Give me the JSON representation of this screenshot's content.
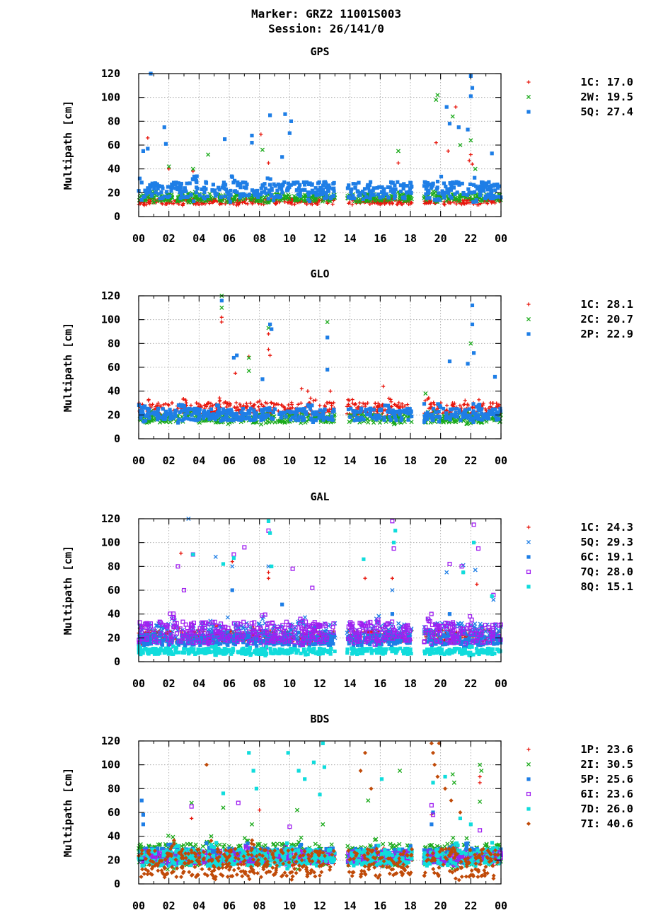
{
  "header": {
    "line1": "Marker: GRZ2 11001S003",
    "line2": "Session: 26/141/0"
  },
  "colors": {
    "1C": "#e8160c",
    "2W": "#1aaa1a",
    "5Q": "#1e7ee6",
    "2C": "#1aaa1a",
    "2P": "#1e7ee6",
    "6C": "#1e7ee6",
    "7Q": "#a020f0",
    "8Q": "#10dcdc",
    "1P": "#e8160c",
    "2I": "#1aaa1a",
    "5P": "#1e7ee6",
    "6I": "#a020f0",
    "7D": "#10dcdc",
    "7I": "#c04a08"
  },
  "chart_data": [
    {
      "type": "scatter",
      "title": "GPS",
      "ylabel": "Multipath [cm]",
      "ylim": [
        0,
        120
      ],
      "yticks": [
        0,
        20,
        40,
        60,
        80,
        100,
        120
      ],
      "xlim": [
        0,
        24
      ],
      "xticks": [
        "00",
        "02",
        "04",
        "06",
        "08",
        "10",
        "12",
        "14",
        "16",
        "18",
        "20",
        "22",
        "00"
      ],
      "grid": true,
      "legend_position": "right",
      "gaps": [
        [
          13.0,
          13.8
        ],
        [
          18.1,
          18.9
        ]
      ],
      "series": [
        {
          "name": "1C",
          "label": "1C: 17.0",
          "marker": "plus",
          "base": 12,
          "spread": 5,
          "outliers": [
            [
              0.6,
              66
            ],
            [
              2.0,
              40
            ],
            [
              3.6,
              38
            ],
            [
              8.1,
              69
            ],
            [
              8.6,
              45
            ],
            [
              17.2,
              45
            ],
            [
              19.7,
              62
            ],
            [
              20.5,
              55
            ],
            [
              21.0,
              92
            ],
            [
              21.9,
              47
            ],
            [
              22.0,
              52
            ],
            [
              22.1,
              44
            ]
          ]
        },
        {
          "name": "2W",
          "label": "2W: 19.5",
          "marker": "cross",
          "base": 15,
          "spread": 6,
          "outliers": [
            [
              2.0,
              42
            ],
            [
              3.6,
              40
            ],
            [
              4.6,
              52
            ],
            [
              8.2,
              56
            ],
            [
              17.2,
              55
            ],
            [
              19.7,
              98
            ],
            [
              19.8,
              102
            ],
            [
              20.8,
              84
            ],
            [
              21.3,
              60
            ],
            [
              22.0,
              64
            ],
            [
              22.3,
              40
            ]
          ]
        },
        {
          "name": "5Q",
          "label": "5Q: 27.4",
          "marker": "square",
          "base": 20,
          "spread": 14,
          "outliers": [
            [
              0.8,
              120
            ],
            [
              0.3,
              55
            ],
            [
              0.6,
              57
            ],
            [
              1.7,
              75
            ],
            [
              1.8,
              61
            ],
            [
              5.7,
              65
            ],
            [
              7.5,
              68
            ],
            [
              8.7,
              85
            ],
            [
              9.7,
              86
            ],
            [
              10.1,
              80
            ],
            [
              10.0,
              70
            ],
            [
              20.4,
              92
            ],
            [
              20.6,
              78
            ],
            [
              21.2,
              75
            ],
            [
              21.8,
              73
            ],
            [
              22.0,
              118
            ],
            [
              22.0,
              101
            ],
            [
              22.1,
              108
            ],
            [
              23.4,
              53
            ],
            [
              7.5,
              62
            ],
            [
              9.5,
              50
            ]
          ]
        }
      ]
    },
    {
      "type": "scatter",
      "title": "GLO",
      "ylabel": "Multipath [cm]",
      "ylim": [
        0,
        120
      ],
      "yticks": [
        0,
        20,
        40,
        60,
        80,
        100,
        120
      ],
      "xlim": [
        0,
        24
      ],
      "xticks": [
        "00",
        "02",
        "04",
        "06",
        "08",
        "10",
        "12",
        "14",
        "16",
        "18",
        "20",
        "22",
        "00"
      ],
      "grid": true,
      "legend_position": "right",
      "gaps": [
        [
          13.0,
          13.8
        ],
        [
          18.1,
          18.9
        ]
      ],
      "series": [
        {
          "name": "1C",
          "label": "1C: 28.1",
          "marker": "plus",
          "base": 24,
          "spread": 10,
          "outliers": [
            [
              5.5,
              98
            ],
            [
              5.5,
              102
            ],
            [
              6.4,
              55
            ],
            [
              7.3,
              69
            ],
            [
              8.6,
              88
            ],
            [
              8.6,
              75
            ],
            [
              8.7,
              70
            ],
            [
              10.8,
              42
            ],
            [
              11.2,
              40
            ],
            [
              12.7,
              40
            ],
            [
              16.2,
              44
            ]
          ]
        },
        {
          "name": "2C",
          "label": "2C: 20.7",
          "marker": "cross",
          "base": 16,
          "spread": 7,
          "outliers": [
            [
              5.5,
              120
            ],
            [
              5.5,
              110
            ],
            [
              7.3,
              68
            ],
            [
              7.3,
              57
            ],
            [
              8.6,
              93
            ],
            [
              12.5,
              98
            ],
            [
              19.0,
              38
            ],
            [
              22.0,
              80
            ]
          ]
        },
        {
          "name": "2P",
          "label": "2P: 22.9",
          "marker": "square",
          "base": 19,
          "spread": 10,
          "outliers": [
            [
              5.5,
              116
            ],
            [
              6.5,
              70
            ],
            [
              6.3,
              68
            ],
            [
              8.7,
              96
            ],
            [
              8.8,
              92
            ],
            [
              12.5,
              85
            ],
            [
              12.5,
              58
            ],
            [
              20.6,
              65
            ],
            [
              21.8,
              63
            ],
            [
              22.1,
              112
            ],
            [
              22.1,
              96
            ],
            [
              22.2,
              72
            ],
            [
              23.6,
              52
            ],
            [
              8.2,
              50
            ]
          ]
        }
      ]
    },
    {
      "type": "scatter",
      "title": "GAL",
      "ylabel": "Multipath [cm]",
      "ylim": [
        0,
        120
      ],
      "yticks": [
        0,
        20,
        40,
        60,
        80,
        100,
        120
      ],
      "xlim": [
        0,
        24
      ],
      "xticks": [
        "00",
        "02",
        "04",
        "06",
        "08",
        "10",
        "12",
        "14",
        "16",
        "18",
        "20",
        "22",
        "00"
      ],
      "grid": true,
      "legend_position": "right",
      "gaps": [
        [
          13.0,
          13.8
        ],
        [
          18.1,
          18.9
        ]
      ],
      "series": [
        {
          "name": "1C",
          "label": "1C: 24.3",
          "marker": "plus",
          "base": 20,
          "spread": 10,
          "outliers": [
            [
              2.8,
              91
            ],
            [
              6.2,
              84
            ],
            [
              8.6,
              70
            ],
            [
              15.0,
              70
            ],
            [
              16.8,
              70
            ],
            [
              21.5,
              75
            ],
            [
              22.4,
              65
            ],
            [
              8.6,
              75
            ]
          ]
        },
        {
          "name": "5Q",
          "label": "5Q: 29.3",
          "marker": "cross",
          "base": 22,
          "spread": 16,
          "outliers": [
            [
              3.3,
              120
            ],
            [
              5.1,
              88
            ],
            [
              6.2,
              80
            ],
            [
              8.6,
              80
            ],
            [
              16.8,
              60
            ],
            [
              20.4,
              75
            ],
            [
              21.5,
              81
            ],
            [
              22.3,
              77
            ],
            [
              23.5,
              52
            ]
          ]
        },
        {
          "name": "6C",
          "label": "6C: 19.1",
          "marker": "square",
          "base": 17,
          "spread": 9,
          "outliers": [
            [
              6.2,
              60
            ],
            [
              9.5,
              48
            ],
            [
              16.8,
              40
            ],
            [
              20.6,
              40
            ]
          ]
        },
        {
          "name": "7Q",
          "label": "7Q: 28.0",
          "marker": "osquare",
          "base": 22,
          "spread": 18,
          "outliers": [
            [
              2.6,
              80
            ],
            [
              3.0,
              60
            ],
            [
              3.6,
              90
            ],
            [
              6.3,
              90
            ],
            [
              7.0,
              96
            ],
            [
              8.6,
              110
            ],
            [
              10.2,
              78
            ],
            [
              11.5,
              62
            ],
            [
              16.8,
              118
            ],
            [
              16.9,
              95
            ],
            [
              20.6,
              82
            ],
            [
              21.4,
              80
            ],
            [
              22.2,
              115
            ],
            [
              22.5,
              95
            ],
            [
              23.5,
              56
            ]
          ]
        },
        {
          "name": "8Q",
          "label": "8Q: 15.1",
          "marker": "square",
          "base": 8,
          "spread": 5,
          "outliers": [
            [
              3.6,
              90
            ],
            [
              5.6,
              82
            ],
            [
              6.3,
              87
            ],
            [
              8.6,
              118
            ],
            [
              8.7,
              108
            ],
            [
              8.8,
              80
            ],
            [
              14.9,
              86
            ],
            [
              17.0,
              110
            ],
            [
              16.9,
              100
            ],
            [
              22.2,
              100
            ],
            [
              21.5,
              75
            ],
            [
              23.4,
              55
            ]
          ]
        }
      ]
    },
    {
      "type": "scatter",
      "title": "BDS",
      "ylabel": "Multipath [cm]",
      "ylim": [
        0,
        120
      ],
      "yticks": [
        0,
        20,
        40,
        60,
        80,
        100,
        120
      ],
      "xlim": [
        0,
        24
      ],
      "xticks": [
        "00",
        "02",
        "04",
        "06",
        "08",
        "10",
        "12",
        "14",
        "16",
        "18",
        "20",
        "22",
        "00"
      ],
      "grid": true,
      "legend_position": "right",
      "gaps": [
        [
          13.0,
          13.8
        ],
        [
          18.1,
          18.9
        ]
      ],
      "series": [
        {
          "name": "1P",
          "label": "1P: 23.6",
          "marker": "plus",
          "base": 20,
          "spread": 10,
          "outliers": [
            [
              3.5,
              55
            ],
            [
              8.0,
              62
            ],
            [
              19.4,
              58
            ],
            [
              22.6,
              85
            ],
            [
              22.6,
              90
            ]
          ]
        },
        {
          "name": "2I",
          "label": "2I: 30.5",
          "marker": "cross",
          "base": 22,
          "spread": 18,
          "outliers": [
            [
              3.5,
              68
            ],
            [
              5.6,
              64
            ],
            [
              7.5,
              50
            ],
            [
              10.5,
              62
            ],
            [
              12.2,
              50
            ],
            [
              15.2,
              70
            ],
            [
              17.3,
              95
            ],
            [
              20.8,
              92
            ],
            [
              20.9,
              85
            ],
            [
              22.6,
              100
            ],
            [
              22.7,
              95
            ],
            [
              22.6,
              69
            ]
          ]
        },
        {
          "name": "5P",
          "label": "5P: 25.6",
          "marker": "square",
          "base": 22,
          "spread": 12,
          "outliers": [
            [
              0.2,
              70
            ],
            [
              0.3,
              58
            ],
            [
              0.3,
              50
            ],
            [
              19.4,
              50
            ],
            [
              19.5,
              60
            ]
          ]
        },
        {
          "name": "6I",
          "label": "6I: 23.6",
          "marker": "osquare",
          "base": 21,
          "spread": 10,
          "outliers": [
            [
              3.5,
              65
            ],
            [
              6.6,
              68
            ],
            [
              10.0,
              48
            ],
            [
              19.4,
              66
            ],
            [
              19.5,
              58
            ],
            [
              22.6,
              45
            ]
          ]
        },
        {
          "name": "7D",
          "label": "7D: 26.0",
          "marker": "square",
          "base": 20,
          "spread": 14,
          "outliers": [
            [
              5.6,
              76
            ],
            [
              7.3,
              110
            ],
            [
              7.6,
              95
            ],
            [
              7.8,
              80
            ],
            [
              9.9,
              110
            ],
            [
              10.6,
              95
            ],
            [
              11.0,
              88
            ],
            [
              11.6,
              102
            ],
            [
              12.2,
              118
            ],
            [
              12.3,
              98
            ],
            [
              12.0,
              75
            ],
            [
              16.1,
              88
            ],
            [
              19.5,
              85
            ],
            [
              20.3,
              90
            ],
            [
              21.3,
              55
            ],
            [
              22.0,
              50
            ]
          ]
        },
        {
          "name": "7I",
          "label": "7I: 40.6",
          "marker": "diamond",
          "base": 14,
          "spread": 24,
          "outliers": [
            [
              4.5,
              100
            ],
            [
              15.0,
              110
            ],
            [
              14.7,
              95
            ],
            [
              15.4,
              80
            ],
            [
              19.4,
              118
            ],
            [
              19.5,
              110
            ],
            [
              19.6,
              100
            ],
            [
              19.9,
              118
            ],
            [
              19.8,
              90
            ],
            [
              20.3,
              80
            ],
            [
              20.7,
              70
            ],
            [
              21.3,
              60
            ]
          ]
        }
      ]
    }
  ]
}
